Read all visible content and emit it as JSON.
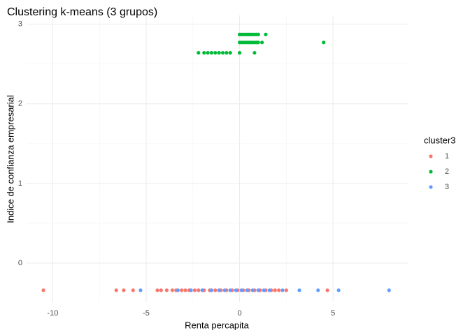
{
  "chart_data": {
    "type": "scatter",
    "title": "Clustering k-means (3 grupos)",
    "x_label": "Renta percapita",
    "y_label": "Indice de confianza empresarial",
    "legend_title": "cluster3",
    "legend_position": "right",
    "grid": true,
    "xlim": [
      -11.4,
      9.0
    ],
    "xticks": [
      -10,
      -5,
      0,
      5
    ],
    "ylim": [
      -0.49,
      3.11
    ],
    "yticks": [
      0,
      1,
      2,
      3
    ],
    "series": [
      {
        "name": "1",
        "color": "#F8766D",
        "x": [
          -10.5,
          -6.6,
          -6.2,
          -5.7,
          -4.4,
          -4.2,
          -3.9,
          -3.6,
          -3.4,
          -3.1,
          -2.9,
          -2.7,
          -2.4,
          -2.2,
          -1.9,
          -1.6,
          -1.3,
          -1.0,
          -0.7,
          -0.4,
          -0.1,
          0.2,
          0.5,
          0.8,
          1.1,
          1.4,
          1.7,
          1.9,
          2.1,
          2.5,
          4.7
        ],
        "values": [
          -0.34,
          -0.34,
          -0.34,
          -0.34,
          -0.34,
          -0.34,
          -0.34,
          -0.34,
          -0.34,
          -0.34,
          -0.34,
          -0.34,
          -0.34,
          -0.34,
          -0.34,
          -0.34,
          -0.34,
          -0.34,
          -0.34,
          -0.34,
          -0.34,
          -0.34,
          -0.34,
          -0.34,
          -0.34,
          -0.34,
          -0.34,
          -0.34,
          -0.34,
          -0.34,
          -0.34
        ]
      },
      {
        "name": "2",
        "color": "#00BA38",
        "x": [
          0.0,
          0.1,
          0.2,
          0.3,
          0.4,
          0.5,
          0.6,
          0.7,
          0.8,
          0.9,
          1.0,
          1.4,
          0.0,
          0.1,
          0.2,
          0.3,
          0.4,
          0.5,
          0.6,
          0.7,
          0.8,
          0.9,
          1.0,
          1.2,
          4.5,
          -2.2,
          -1.9,
          -1.7,
          -1.5,
          -1.3,
          -1.1,
          -0.9,
          -0.7,
          -0.5,
          0.0,
          0.8
        ],
        "values": [
          2.87,
          2.87,
          2.87,
          2.87,
          2.87,
          2.87,
          2.87,
          2.87,
          2.87,
          2.87,
          2.87,
          2.87,
          2.77,
          2.77,
          2.77,
          2.77,
          2.77,
          2.77,
          2.77,
          2.77,
          2.77,
          2.77,
          2.77,
          2.77,
          2.77,
          2.64,
          2.64,
          2.64,
          2.64,
          2.64,
          2.64,
          2.64,
          2.64,
          2.64,
          2.64,
          2.64
        ]
      },
      {
        "name": "3",
        "color": "#619CFF",
        "x": [
          -5.3,
          -3.3,
          -2.6,
          -2.0,
          -1.5,
          -1.1,
          -0.8,
          -0.5,
          -0.2,
          0.1,
          0.4,
          0.7,
          1.0,
          1.3,
          1.6,
          2.3,
          3.2,
          4.2,
          5.3,
          8.0
        ],
        "values": [
          -0.34,
          -0.34,
          -0.34,
          -0.34,
          -0.34,
          -0.34,
          -0.34,
          -0.34,
          -0.34,
          -0.34,
          -0.34,
          -0.34,
          -0.34,
          -0.34,
          -0.34,
          -0.34,
          -0.34,
          -0.34,
          -0.34,
          -0.34
        ]
      }
    ]
  }
}
